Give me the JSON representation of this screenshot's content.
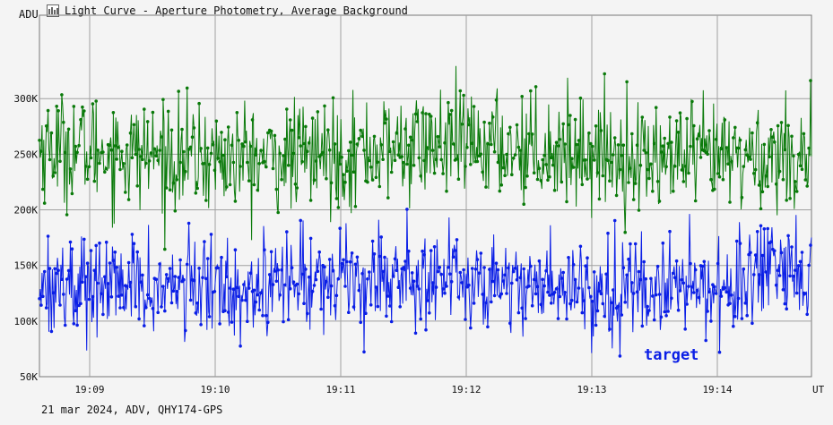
{
  "window": {
    "title": "Light Curve - Aperture Photometry, Average Background",
    "footer": "21 mar 2024, ADV, QHY174-GPS"
  },
  "colors": {
    "background": "#f4f4f4",
    "grid": "#a0a0a0",
    "series_green": "#0a7a0a",
    "series_blue": "#0a1ee6"
  },
  "chart_data": {
    "type": "line",
    "ylabel": "ADU",
    "xlabel": "UT",
    "ylim": [
      50000,
      375000
    ],
    "xlim_minutes": [
      8.6,
      14.75
    ],
    "y_ticks": [
      {
        "value": 300000,
        "label": "300K"
      },
      {
        "value": 250000,
        "label": "250K"
      },
      {
        "value": 200000,
        "label": "200K"
      },
      {
        "value": 150000,
        "label": "150K"
      },
      {
        "value": 100000,
        "label": "100K"
      },
      {
        "value": 50000,
        "label": "50K"
      }
    ],
    "x_ticks": [
      {
        "value": 9,
        "label": "19:09"
      },
      {
        "value": 10,
        "label": "19:10"
      },
      {
        "value": 11,
        "label": "19:11"
      },
      {
        "value": 12,
        "label": "19:12"
      },
      {
        "value": 13,
        "label": "19:13"
      },
      {
        "value": 14,
        "label": "19:14"
      }
    ],
    "grid": true,
    "series": [
      {
        "name": "",
        "color": "#0a7a0a",
        "mean": 252000,
        "spread": 24000,
        "values_sample": [
          258000,
          231000,
          276000,
          244000,
          262000,
          219000,
          283000,
          247000,
          301000,
          237000,
          265000,
          229000
        ]
      },
      {
        "name": "target",
        "color": "#0a1ee6",
        "mean": 135000,
        "spread": 22000,
        "values_sample": [
          131000,
          158000,
          112000,
          144000,
          96000,
          167000,
          128000,
          149000,
          103000,
          139000,
          121000,
          152000
        ]
      }
    ],
    "annotations": [
      {
        "text": "target",
        "color": "#0a1ee6"
      }
    ]
  }
}
